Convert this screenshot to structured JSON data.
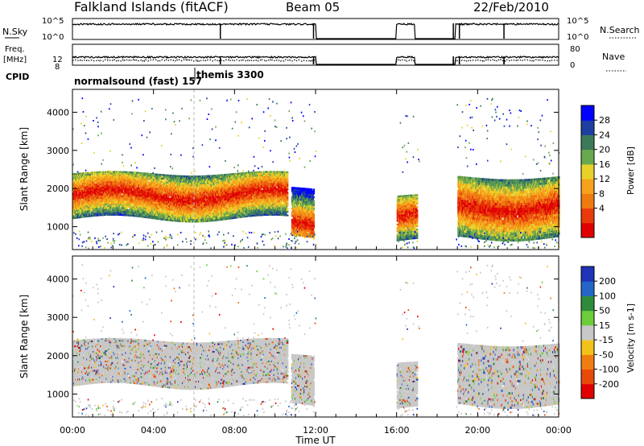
{
  "header": {
    "site": "Falkland Islands (fitACF)",
    "beam": "Beam 05",
    "date": "22/Feb/2010"
  },
  "top_panels": {
    "nsky_label": "N.Sky",
    "nsky_ticks": [
      "10^5",
      "10^0"
    ],
    "nsearch_label": "N.Search",
    "nsearch_ticks": [
      "10^5",
      "10^0"
    ],
    "freq_label": "Freq.",
    "freq_unit": "[MHz]",
    "freq_ticks": [
      "12",
      "8"
    ],
    "nave_label": "Nave",
    "nave_ticks": [
      "80",
      "0"
    ],
    "cpid_label": "CPID",
    "cpid_modes": [
      {
        "label": "normalsound (fast) 157"
      },
      {
        "label": "themis 3300"
      }
    ]
  },
  "colors": {
    "power_scale": [
      "#0000ff",
      "#1f3fa0",
      "#3a7a5a",
      "#6aa84f",
      "#e8d22a",
      "#f6a21c",
      "#f07a12",
      "#e83a0a",
      "#e00000"
    ],
    "velocity_scale": [
      "#1e33b8",
      "#2366c8",
      "#2e8b3a",
      "#6ccc3a",
      "#c8c8c8",
      "#f2c21a",
      "#f07d12",
      "#e84a0a",
      "#e00000"
    ],
    "gray_scatter": "#c8c8c8"
  },
  "chart_data": [
    {
      "type": "heatmap",
      "panel": "power",
      "ylabel": "Slant Range [km]",
      "yticks": [
        "1000",
        "2000",
        "3000",
        "4000"
      ],
      "ylim": [
        400,
        4600
      ],
      "xlim": [
        0,
        24
      ],
      "colorbar_label": "Power [dB]",
      "colorbar_ticks": [
        "28",
        "24",
        "20",
        "16",
        "12",
        "8",
        "4"
      ],
      "data_gaps_hours": [
        [
          12,
          16
        ],
        [
          17.1,
          18.9
        ]
      ],
      "data_blocks": [
        {
          "start_h": 0.0,
          "end_h": 10.6,
          "range_km": [
            1200,
            2400
          ],
          "peak_range_km": 1800
        },
        {
          "start_h": 10.8,
          "end_h": 11.9,
          "range_km": [
            700,
            2000
          ],
          "peak_range_km": 1000
        },
        {
          "start_h": 16.0,
          "end_h": 17.0,
          "range_km": [
            600,
            1800
          ],
          "peak_range_km": 1200
        },
        {
          "start_h": 19.0,
          "end_h": 24.0,
          "range_km": [
            700,
            2300
          ],
          "peak_range_km": 1500
        }
      ]
    },
    {
      "type": "heatmap",
      "panel": "velocity",
      "ylabel": "Slant Range [km]",
      "yticks": [
        "1000",
        "2000",
        "3000",
        "4000"
      ],
      "ylim": [
        400,
        4600
      ],
      "xlim": [
        0,
        24
      ],
      "xlabel": "Time UT",
      "xticks": [
        "00:00",
        "04:00",
        "08:00",
        "12:00",
        "16:00",
        "20:00",
        "00:00"
      ],
      "colorbar_label": "Velocity [m s-1]",
      "colorbar_ticks": [
        "200",
        "100",
        "50",
        "15",
        "-15",
        "-50",
        "-100",
        "-200"
      ]
    }
  ]
}
